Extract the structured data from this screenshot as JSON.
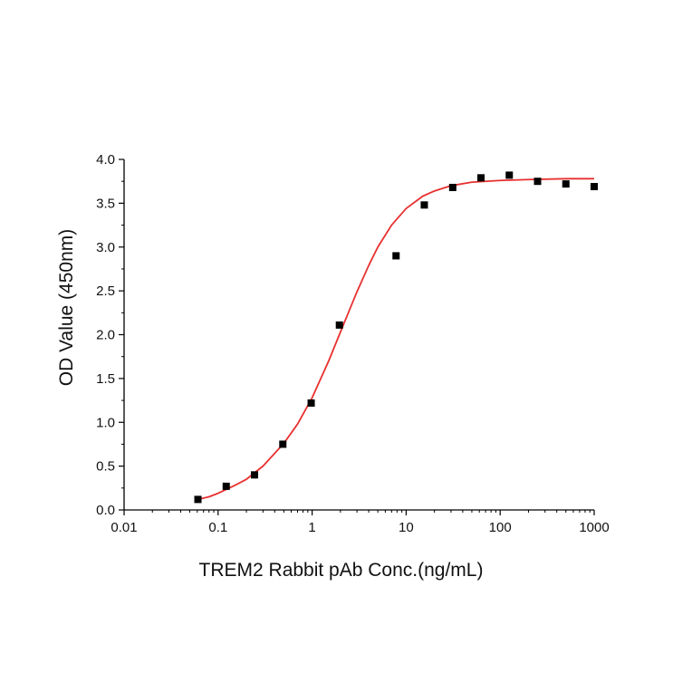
{
  "chart_data": {
    "type": "scatter",
    "title": "",
    "xlabel": "TREM2 Rabbit pAb Conc.(ng/mL)",
    "ylabel": "OD Value (450nm)",
    "x_scale": "log",
    "xlim": [
      0.01,
      1000
    ],
    "ylim": [
      0.0,
      4.0
    ],
    "x_ticks": [
      0.01,
      0.1,
      1,
      10,
      100,
      1000
    ],
    "x_tick_labels": [
      "0.01",
      "0.1",
      "1",
      "10",
      "100",
      "1000"
    ],
    "y_ticks": [
      0.0,
      0.5,
      1.0,
      1.5,
      2.0,
      2.5,
      3.0,
      3.5,
      4.0
    ],
    "y_tick_labels": [
      "0.0",
      "0.5",
      "1.0",
      "1.5",
      "2.0",
      "2.5",
      "3.0",
      "3.5",
      "4.0"
    ],
    "grid": false,
    "series": [
      {
        "kind": "points",
        "marker": "square",
        "color": "#000000",
        "x": [
          0.061,
          0.122,
          0.244,
          0.488,
          0.977,
          1.95,
          7.81,
          15.6,
          31.3,
          62.5,
          125,
          250,
          500,
          1000
        ],
        "y": [
          0.12,
          0.27,
          0.4,
          0.75,
          1.22,
          2.11,
          2.9,
          3.48,
          3.68,
          3.79,
          3.82,
          3.75,
          3.72,
          3.69
        ]
      },
      {
        "kind": "fit-curve",
        "color": "#e8302f",
        "x": [
          0.061,
          0.08,
          0.1,
          0.15,
          0.2,
          0.3,
          0.5,
          0.7,
          1.0,
          1.5,
          2.0,
          3.0,
          4.0,
          5.0,
          7.0,
          10,
          15,
          20,
          30,
          50,
          100,
          200,
          500,
          1000
        ],
        "y": [
          0.12,
          0.15,
          0.19,
          0.28,
          0.35,
          0.5,
          0.76,
          0.98,
          1.28,
          1.7,
          2.03,
          2.49,
          2.79,
          3.0,
          3.25,
          3.44,
          3.58,
          3.64,
          3.7,
          3.74,
          3.76,
          3.77,
          3.78,
          3.78
        ]
      }
    ]
  }
}
